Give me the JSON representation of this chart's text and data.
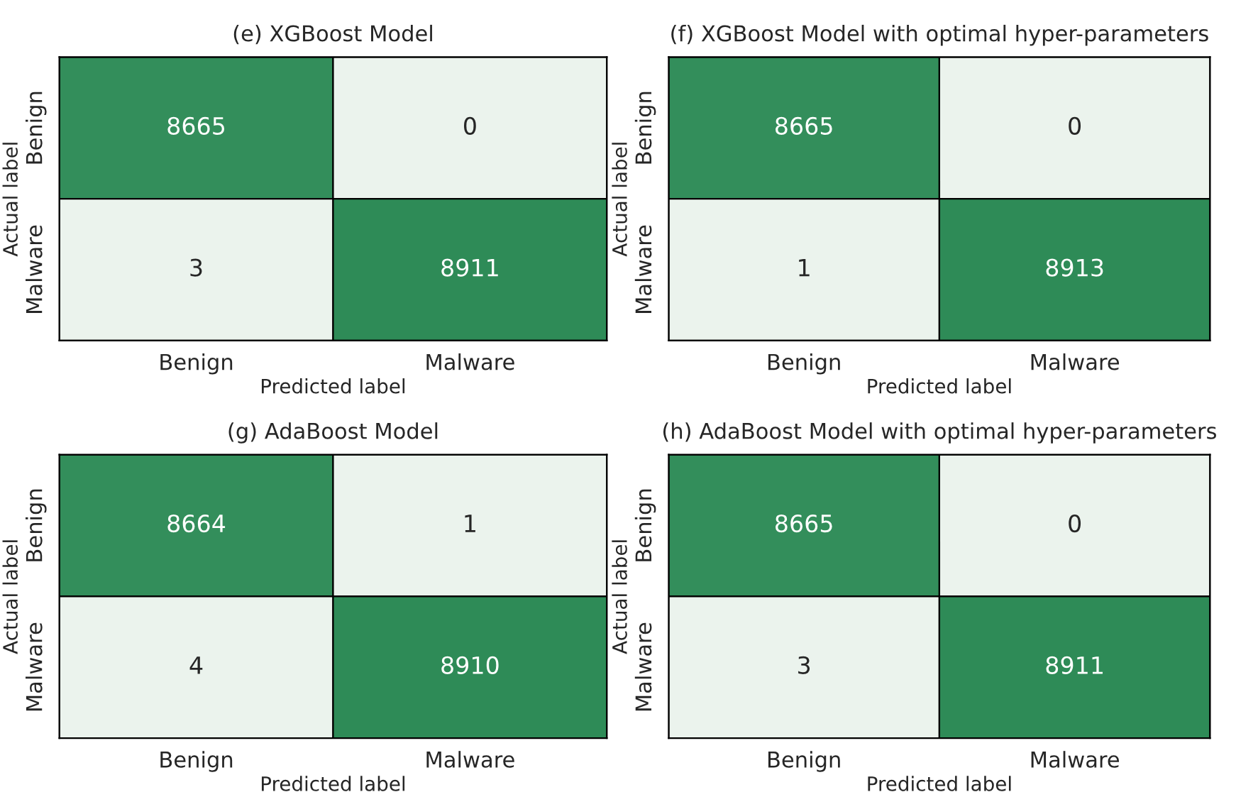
{
  "chart_data": [
    {
      "type": "heatmap",
      "title": "(e) XGBoost Model",
      "xlabel": "Predicted label",
      "ylabel": "Actual label",
      "categories": [
        "Benign",
        "Malware"
      ],
      "y_categories": [
        "Benign",
        "Malware"
      ],
      "cells": [
        [
          8665,
          0
        ],
        [
          3,
          8911
        ]
      ],
      "data_labels": true
    },
    {
      "type": "heatmap",
      "title": "(f) XGBoost Model with optimal hyper-parameters",
      "xlabel": "Predicted label",
      "ylabel": "Actual label",
      "categories": [
        "Benign",
        "Malware"
      ],
      "y_categories": [
        "Benign",
        "Malware"
      ],
      "cells": [
        [
          8665,
          0
        ],
        [
          1,
          8913
        ]
      ],
      "data_labels": true
    },
    {
      "type": "heatmap",
      "title": "(g) AdaBoost Model",
      "xlabel": "Predicted label",
      "ylabel": "Actual label",
      "categories": [
        "Benign",
        "Malware"
      ],
      "y_categories": [
        "Benign",
        "Malware"
      ],
      "cells": [
        [
          8664,
          1
        ],
        [
          4,
          8910
        ]
      ],
      "data_labels": true
    },
    {
      "type": "heatmap",
      "title": "(h) AdaBoost Model with optimal hyper-parameters",
      "xlabel": "Predicted label",
      "ylabel": "Actual label",
      "categories": [
        "Benign",
        "Malware"
      ],
      "y_categories": [
        "Benign",
        "Malware"
      ],
      "cells": [
        [
          8665,
          0
        ],
        [
          3,
          8911
        ]
      ],
      "data_labels": true
    }
  ]
}
